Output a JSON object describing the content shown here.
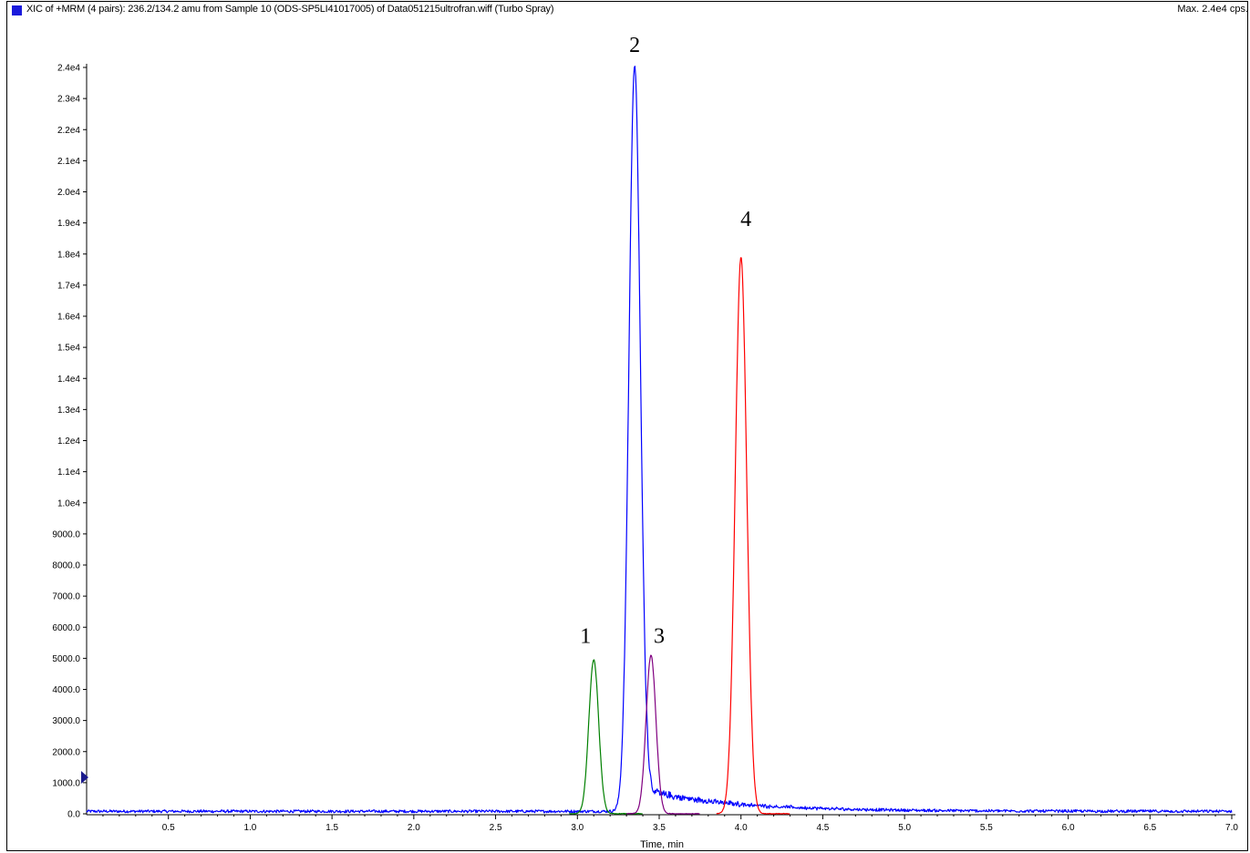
{
  "header": {
    "title": "XIC of +MRM (4 pairs): 236.2/134.2 amu from Sample 10 (ODS-SP5LI41017005) of Data051215ultrofran.wiff (Turbo Spray)",
    "max": "Max. 2.4e4 cps."
  },
  "chart_data": {
    "type": "line",
    "xlabel": "Time, min",
    "ylabel": "",
    "xlim": [
      0,
      7.0
    ],
    "ylim": [
      0,
      24000
    ],
    "x_ticks": [
      "0.5",
      "1.0",
      "1.5",
      "2.0",
      "2.5",
      "3.0",
      "3.5",
      "4.0",
      "4.5",
      "5.0",
      "5.5",
      "6.0",
      "6.5",
      "7.0"
    ],
    "y_ticks": [
      "0.0",
      "1000.0",
      "2000.0",
      "3000.0",
      "4000.0",
      "5000.0",
      "6000.0",
      "7000.0",
      "8000.0",
      "9000.0",
      "1.0e4",
      "1.1e4",
      "1.2e4",
      "1.3e4",
      "1.4e4",
      "1.5e4",
      "1.6e4",
      "1.7e4",
      "1.8e4",
      "1.9e4",
      "2.0e4",
      "2.1e4",
      "2.2e4",
      "2.3e4",
      "2.4e4"
    ],
    "grid": false,
    "series": [
      {
        "color": "#0000ff",
        "baseline": 80,
        "peaks": [
          {
            "x": 3.35,
            "y": 24000,
            "sigma": 0.035
          }
        ],
        "tail": {
          "start": 3.38,
          "amp": 700,
          "decay": 0.55
        }
      },
      {
        "color": "#008000",
        "baseline": 0,
        "peaks": [
          {
            "x": 3.1,
            "y": 4950,
            "sigma": 0.03
          }
        ]
      },
      {
        "color": "#800080",
        "baseline": 0,
        "peaks": [
          {
            "x": 3.45,
            "y": 5100,
            "sigma": 0.03
          }
        ]
      },
      {
        "color": "#ff0000",
        "baseline": 0,
        "peaks": [
          {
            "x": 4.0,
            "y": 17900,
            "sigma": 0.035
          }
        ]
      }
    ],
    "annotations": [
      {
        "text": "1",
        "x": 3.05,
        "y": 5500
      },
      {
        "text": "2",
        "x": 3.35,
        "y": 24500
      },
      {
        "text": "3",
        "x": 3.5,
        "y": 5500
      },
      {
        "text": "4",
        "x": 4.03,
        "y": 18900
      }
    ]
  }
}
